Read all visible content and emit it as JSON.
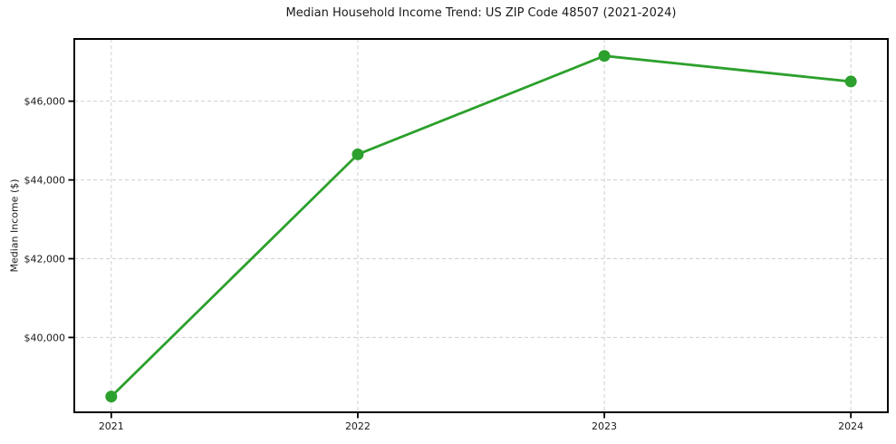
{
  "chart_data": {
    "type": "line",
    "title": "Median Household Income Trend: US ZIP Code 48507 (2021-2024)",
    "xlabel": "",
    "ylabel": "Median Income ($)",
    "x": [
      2021,
      2022,
      2023,
      2024
    ],
    "x_tick_labels": [
      "2021",
      "2022",
      "2023",
      "2024"
    ],
    "series": [
      {
        "name": "Median Household Income",
        "values": [
          38500,
          44650,
          47150,
          46500
        ]
      }
    ],
    "y_ticks": [
      40000,
      42000,
      44000,
      46000
    ],
    "y_tick_labels": [
      "$40,000",
      "$42,000",
      "$44,000",
      "$46,000"
    ],
    "xlim": [
      2020.85,
      2024.15
    ],
    "ylim": [
      38100,
      47580
    ],
    "grid": true,
    "legend_position": "none",
    "line_color": "#2ca02c",
    "marker_color": "#2ca02c",
    "grid_color": "#cfcfcf",
    "axis_color": "#000000",
    "text_color": "#1a1a1a"
  }
}
